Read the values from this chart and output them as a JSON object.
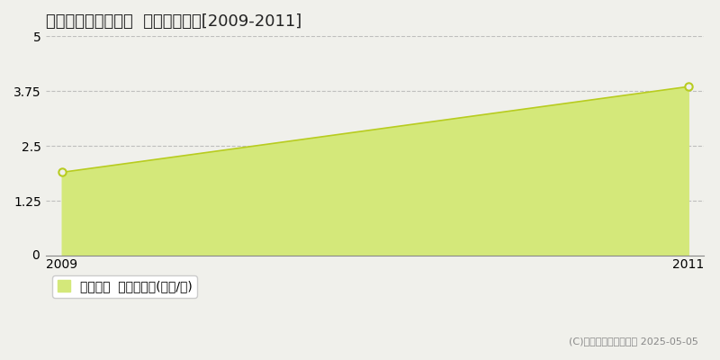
{
  "title": "多気郡多気町東池上  土地価格推移[2009-2011]",
  "years": [
    2009,
    2011
  ],
  "values": [
    1.9,
    3.85
  ],
  "xlim": [
    2008.95,
    2011.05
  ],
  "ylim": [
    0,
    5
  ],
  "yticks": [
    0,
    1.25,
    2.5,
    3.75,
    5
  ],
  "xticks": [
    2009,
    2011
  ],
  "line_color": "#b8cc20",
  "fill_color": "#d4e87a",
  "fill_alpha": 1.0,
  "marker_edge_color": "#b8cc20",
  "grid_color": "#aaaaaa",
  "background_color": "#f0f0eb",
  "plot_bg_color": "#f0f0eb",
  "legend_label": "土地価格  平均坊単価(万円/坊)",
  "copyright_text": "(C)土地価格ドットコム 2025-05-05",
  "title_fontsize": 13,
  "axis_fontsize": 10,
  "legend_fontsize": 10
}
